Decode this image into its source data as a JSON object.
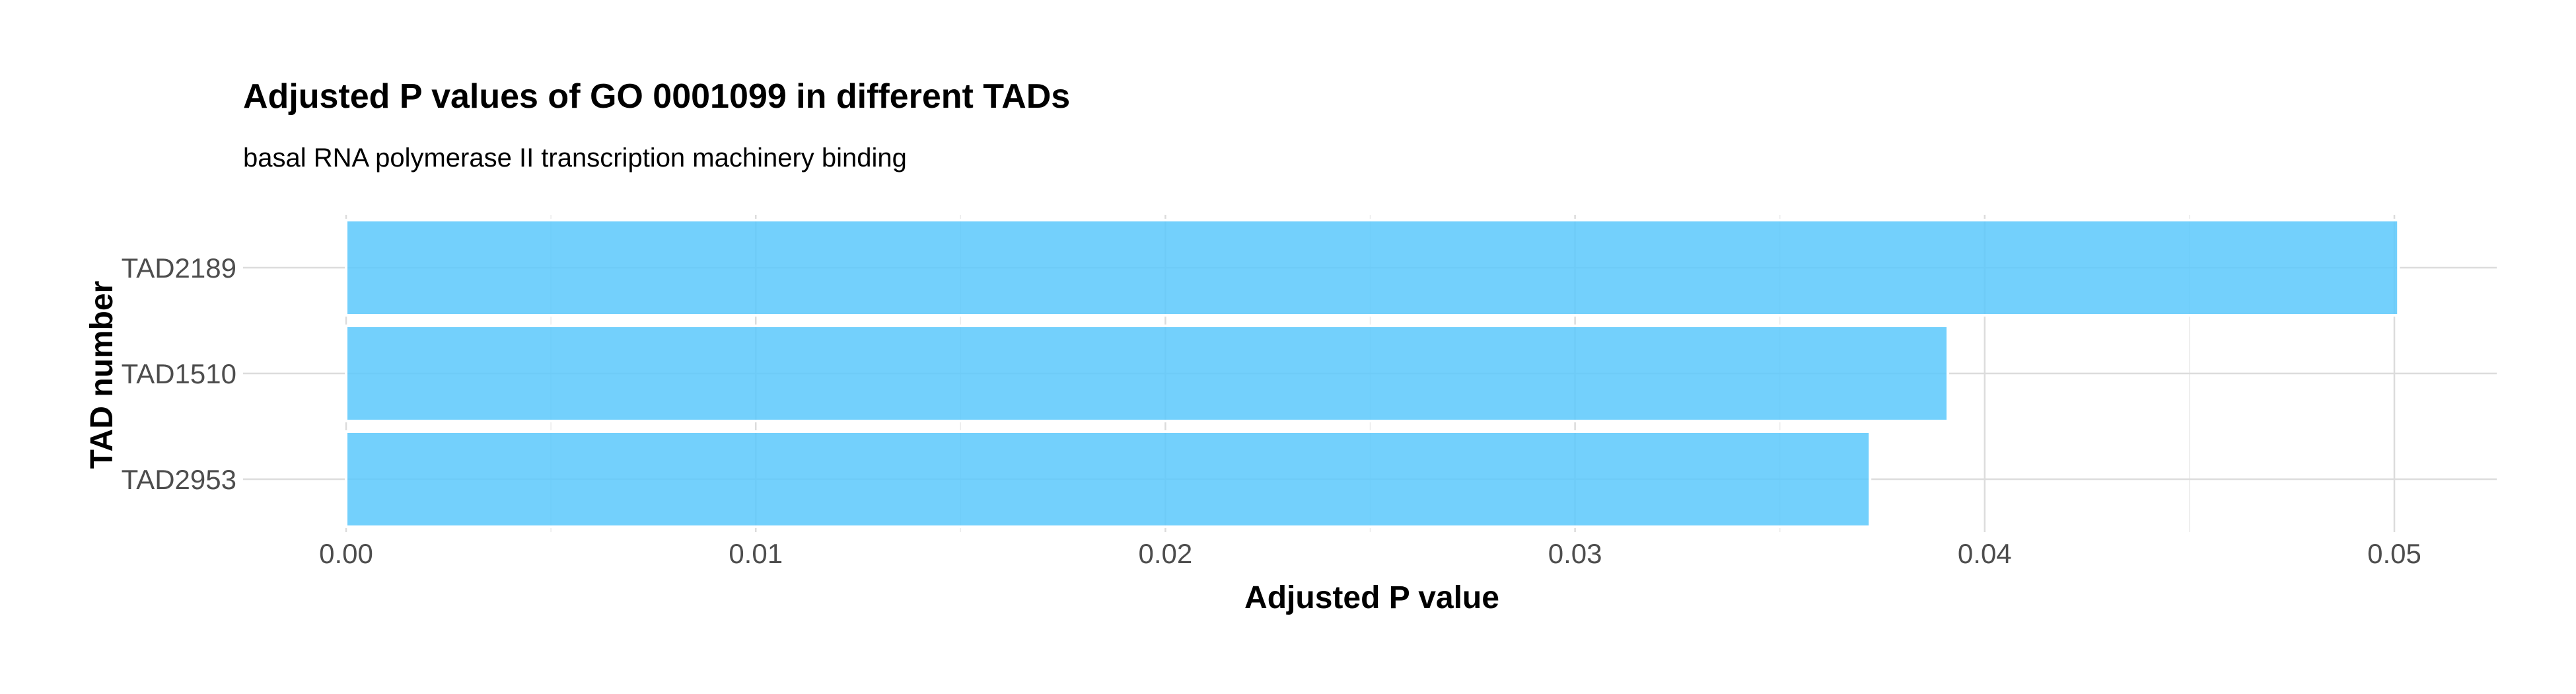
{
  "chart_data": {
    "type": "bar",
    "orientation": "horizontal",
    "title": "Adjusted P values of GO 0001099 in different TADs",
    "subtitle": "basal RNA polymerase II transcription machinery binding",
    "xlabel": "Adjusted P value",
    "ylabel": "TAD number",
    "categories": [
      "TAD2189",
      "TAD1510",
      "TAD2953"
    ],
    "values": [
      0.0501,
      0.0391,
      0.0372
    ],
    "xlim": [
      0.0,
      0.0526
    ],
    "x_ticks": [
      "0.00",
      "0.01",
      "0.02",
      "0.03",
      "0.04",
      "0.05"
    ],
    "x_tick_values": [
      0.0,
      0.01,
      0.02,
      0.03,
      0.04,
      0.05
    ],
    "grid": true,
    "legend": "none",
    "bar_color": "#5bc8fb"
  }
}
